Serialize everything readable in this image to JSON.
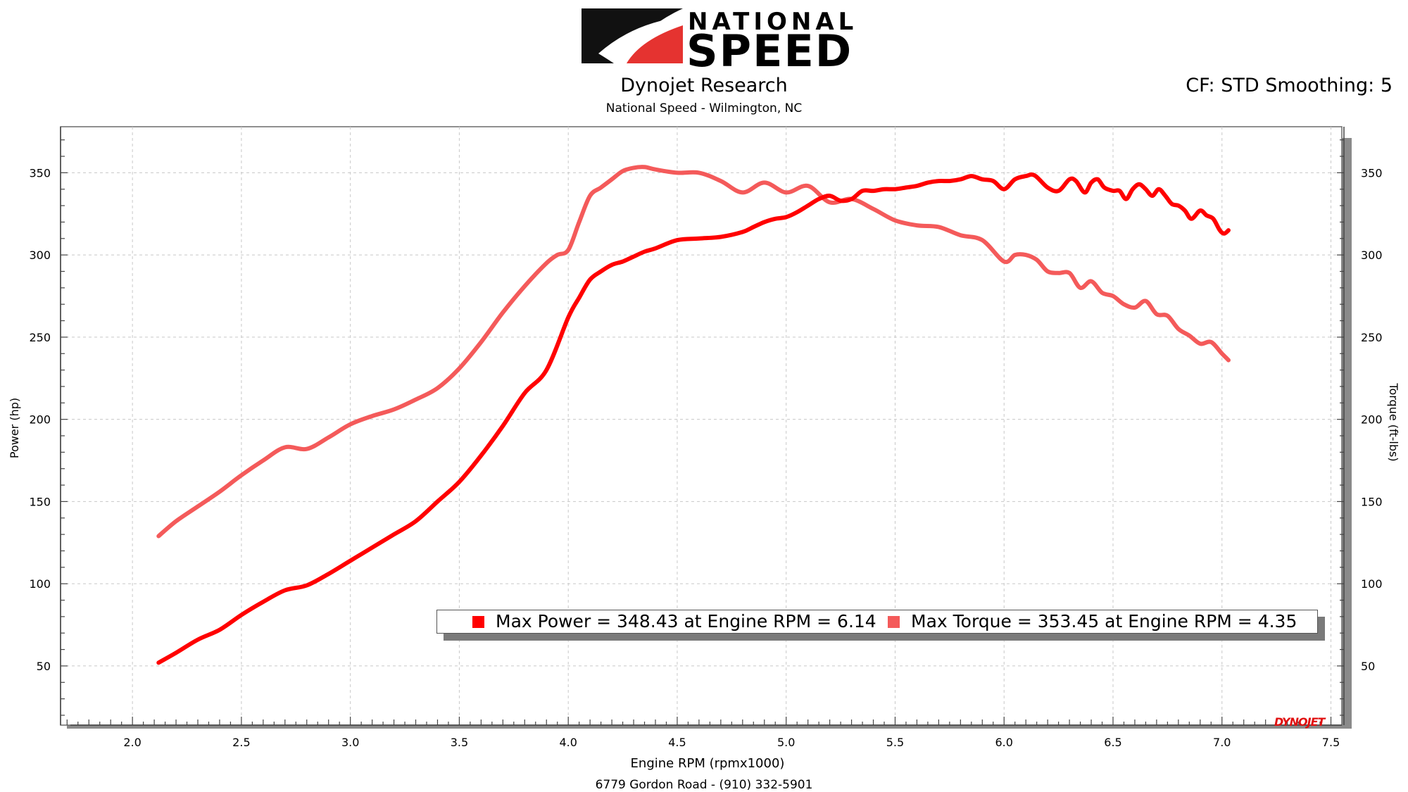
{
  "header": {
    "logo_line1": "NATIONAL",
    "logo_line2": "SPEED",
    "title": "Dynojet Research",
    "subtitle": "National Speed - Wilmington, NC",
    "correction": "CF: STD Smoothing: 5"
  },
  "footer": {
    "address": "6779 Gordon Road - (910) 332-5901"
  },
  "watermark": "DYNOJET",
  "colors": {
    "power": "#ff0000",
    "torque": "#f45a5a",
    "grid": "#c8c8c8",
    "logo_red": "#e53330"
  },
  "chart_data": {
    "type": "line",
    "xlabel": "Engine RPM (rpmx1000)",
    "ylabel": "Power (hp)",
    "y2label": "Torque (ft-lbs)",
    "xlim": [
      1.67,
      7.55
    ],
    "ylim": [
      14,
      378
    ],
    "x_ticks": [
      "2.0",
      "2.5",
      "3.0",
      "3.5",
      "4.0",
      "4.5",
      "5.0",
      "5.5",
      "6.0",
      "6.5",
      "7.0",
      "7.5"
    ],
    "y_ticks": [
      "50",
      "100",
      "150",
      "200",
      "250",
      "300",
      "350"
    ],
    "y2_ticks": [
      "50",
      "100",
      "150",
      "200",
      "250",
      "300",
      "350"
    ],
    "grid": true,
    "legend_position": "bottom-right",
    "series": [
      {
        "name": "Max Power = 348.43 at Engine RPM = 6.14",
        "axis": "left",
        "x": [
          2.12,
          2.2,
          2.3,
          2.4,
          2.5,
          2.6,
          2.7,
          2.8,
          2.9,
          3.0,
          3.1,
          3.2,
          3.3,
          3.4,
          3.5,
          3.6,
          3.7,
          3.8,
          3.9,
          4.0,
          4.05,
          4.1,
          4.15,
          4.2,
          4.25,
          4.3,
          4.35,
          4.4,
          4.5,
          4.6,
          4.7,
          4.8,
          4.85,
          4.9,
          4.95,
          5.0,
          5.05,
          5.1,
          5.15,
          5.2,
          5.25,
          5.3,
          5.35,
          5.4,
          5.45,
          5.5,
          5.55,
          5.6,
          5.65,
          5.7,
          5.75,
          5.8,
          5.85,
          5.9,
          5.95,
          6.0,
          6.05,
          6.1,
          6.14,
          6.2,
          6.25,
          6.3,
          6.33,
          6.37,
          6.4,
          6.43,
          6.46,
          6.5,
          6.53,
          6.56,
          6.59,
          6.62,
          6.65,
          6.68,
          6.71,
          6.74,
          6.77,
          6.8,
          6.83,
          6.86,
          6.9,
          6.93,
          6.96,
          6.99,
          7.01,
          7.03
        ],
        "values": [
          52,
          58,
          66,
          72,
          81,
          89,
          96,
          99,
          106,
          114,
          122,
          130,
          138,
          150,
          162,
          178,
          196,
          216,
          230,
          262,
          274,
          285,
          290,
          294,
          296,
          299,
          302,
          304,
          309,
          310,
          311,
          314,
          317,
          320,
          322,
          323,
          326,
          330,
          334,
          336,
          333,
          334,
          339,
          339,
          340,
          340,
          341,
          342,
          344,
          345,
          345,
          346,
          348,
          346,
          345,
          340,
          346,
          348,
          348.43,
          341,
          339,
          346,
          345,
          338,
          344,
          346,
          341,
          339,
          339,
          334,
          340,
          343,
          340,
          336,
          340,
          336,
          331,
          330,
          327,
          322,
          327,
          324,
          322,
          315,
          313,
          315
        ]
      },
      {
        "name": "Max Torque = 353.45 at Engine RPM = 4.35",
        "axis": "right",
        "x": [
          2.12,
          2.2,
          2.3,
          2.4,
          2.5,
          2.6,
          2.7,
          2.8,
          2.9,
          3.0,
          3.1,
          3.2,
          3.3,
          3.4,
          3.5,
          3.6,
          3.7,
          3.8,
          3.9,
          3.95,
          4.0,
          4.05,
          4.1,
          4.15,
          4.2,
          4.25,
          4.3,
          4.35,
          4.4,
          4.5,
          4.6,
          4.7,
          4.8,
          4.9,
          5.0,
          5.1,
          5.2,
          5.3,
          5.4,
          5.5,
          5.6,
          5.7,
          5.8,
          5.9,
          6.0,
          6.05,
          6.1,
          6.15,
          6.2,
          6.25,
          6.3,
          6.35,
          6.4,
          6.45,
          6.5,
          6.55,
          6.6,
          6.65,
          6.7,
          6.75,
          6.8,
          6.85,
          6.9,
          6.95,
          7.0,
          7.03
        ],
        "values": [
          129,
          138,
          147,
          156,
          166,
          175,
          183,
          182,
          189,
          197,
          202,
          206,
          212,
          219,
          231,
          247,
          265,
          281,
          295,
          300,
          303,
          320,
          336,
          341,
          346,
          351,
          353,
          353.45,
          352,
          350,
          350,
          345,
          338,
          344,
          338,
          342,
          332,
          334,
          328,
          321,
          318,
          317,
          312,
          309,
          296,
          300,
          300,
          297,
          290,
          289,
          289,
          280,
          284,
          277,
          275,
          270,
          268,
          272,
          264,
          263,
          255,
          251,
          246,
          247,
          240,
          236
        ]
      }
    ]
  }
}
